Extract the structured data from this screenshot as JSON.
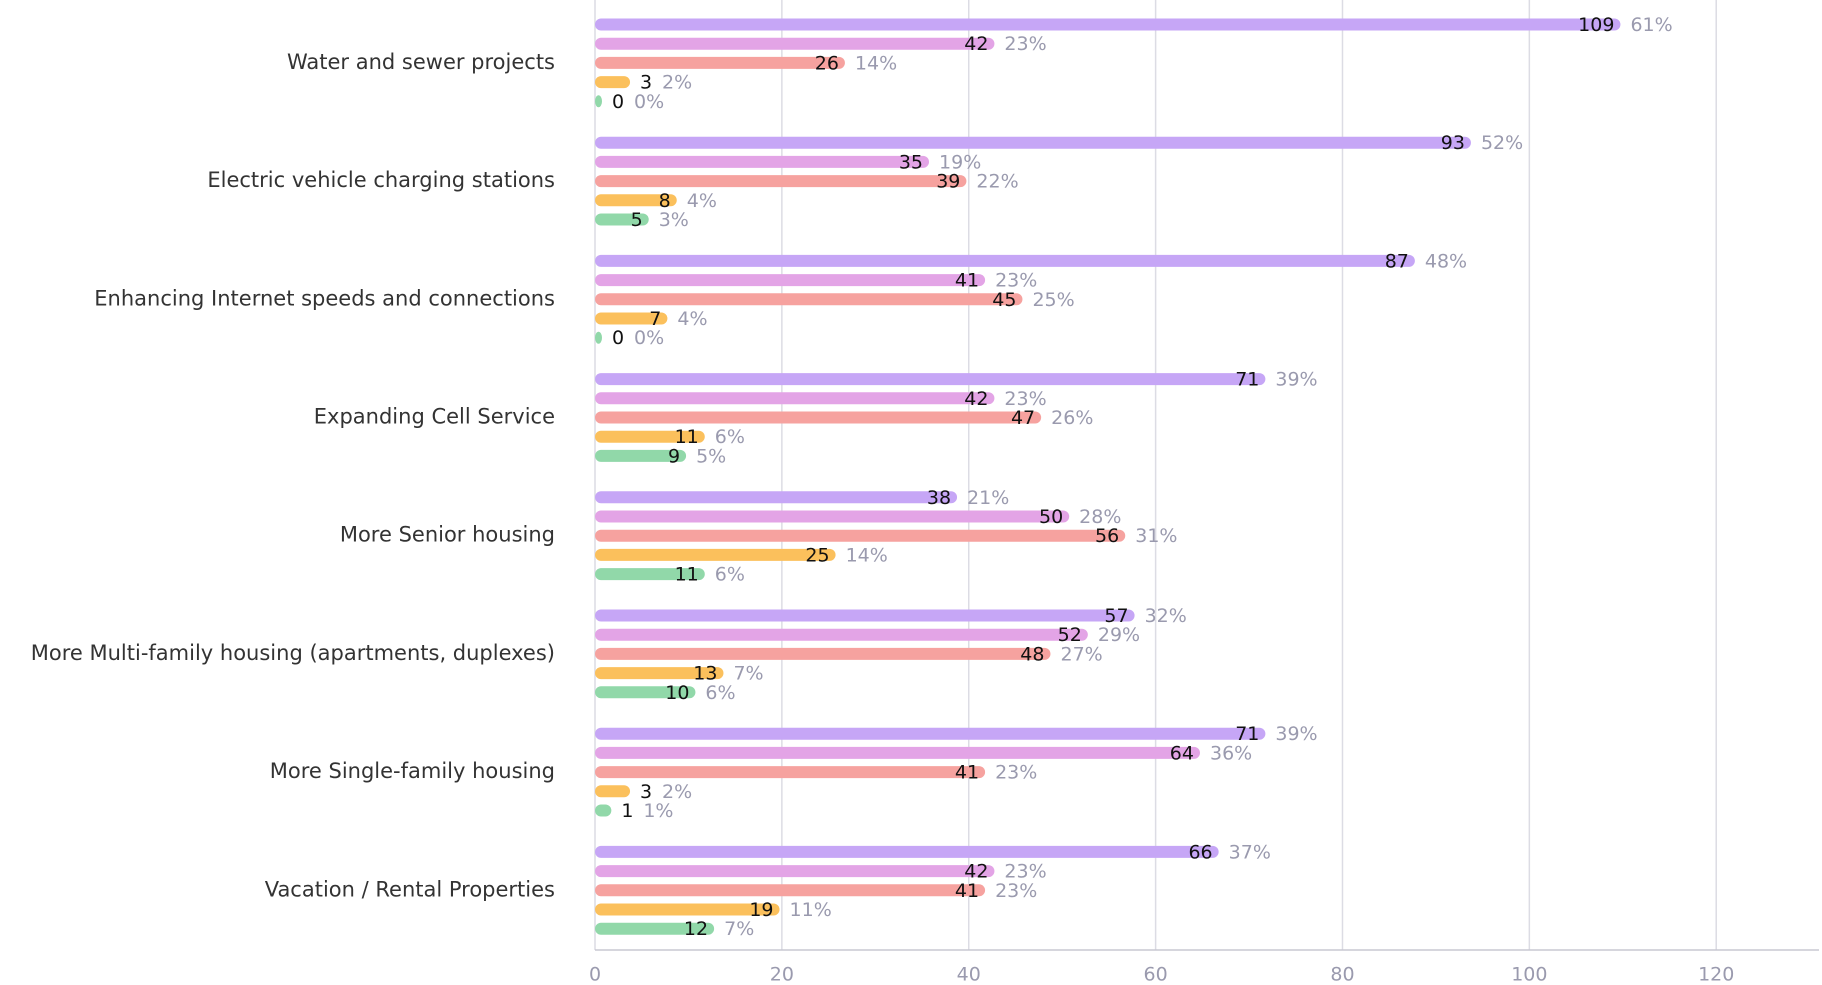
{
  "chart_data": {
    "type": "bar",
    "orientation": "horizontal",
    "categories": [
      "Water and sewer projects",
      "Electric vehicle charging stations",
      "Enhancing Internet speeds and connections",
      "Expanding Cell Service",
      "More Senior housing",
      "More Multi-family housing (apartments, duplexes)",
      "More Single-family housing",
      "Vacation / Rental Properties"
    ],
    "series": [
      {
        "color": "#c6a6f6",
        "values": [
          109,
          93,
          87,
          71,
          38,
          57,
          71,
          66
        ],
        "percent_labels": [
          "61%",
          "52%",
          "48%",
          "39%",
          "21%",
          "32%",
          "39%",
          "37%"
        ]
      },
      {
        "color": "#e3a4e6",
        "values": [
          42,
          35,
          41,
          42,
          50,
          52,
          64,
          42
        ],
        "percent_labels": [
          "23%",
          "19%",
          "23%",
          "23%",
          "28%",
          "29%",
          "36%",
          "23%"
        ]
      },
      {
        "color": "#f6a29f",
        "values": [
          26,
          39,
          45,
          47,
          56,
          48,
          41,
          41
        ],
        "percent_labels": [
          "14%",
          "22%",
          "25%",
          "26%",
          "31%",
          "27%",
          "23%",
          "23%"
        ]
      },
      {
        "color": "#fbc05c",
        "values": [
          3,
          8,
          7,
          11,
          25,
          13,
          3,
          19
        ],
        "percent_labels": [
          "2%",
          "4%",
          "4%",
          "6%",
          "14%",
          "7%",
          "2%",
          "11%"
        ]
      },
      {
        "color": "#91d8a9",
        "values": [
          0,
          5,
          0,
          9,
          11,
          10,
          1,
          12
        ],
        "percent_labels": [
          "0%",
          "3%",
          "0%",
          "5%",
          "6%",
          "6%",
          "1%",
          "7%"
        ]
      }
    ],
    "xlim": [
      0,
      131
    ],
    "xticks": [
      0,
      20,
      40,
      60,
      80,
      100,
      120
    ],
    "grid": true
  }
}
